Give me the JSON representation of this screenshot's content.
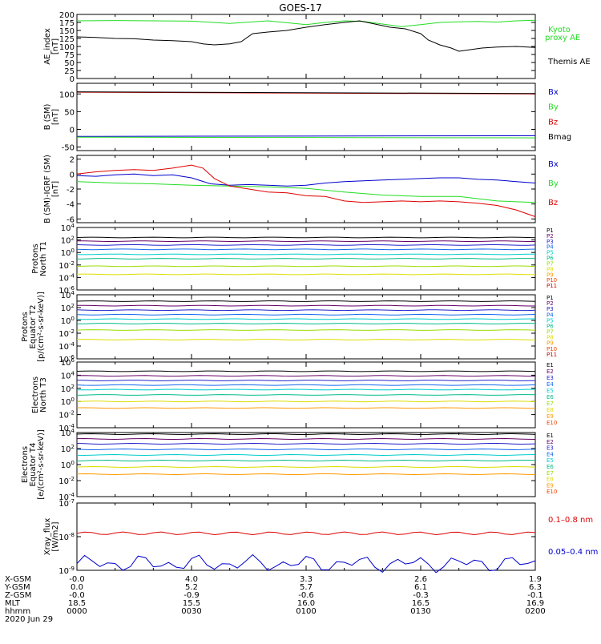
{
  "title": "GOES-17",
  "colors": {
    "black": "#000000",
    "green": "#22dd22",
    "blue": "#0000cc",
    "red": "#dd0000",
    "P1": "#000000",
    "P2": "#660066",
    "P3": "#2222cc",
    "P4": "#1166ee",
    "P5": "#00cccc",
    "P6": "#00bb88",
    "P7": "#99dd00",
    "P8": "#dddd00",
    "P9": "#ff9900",
    "P10": "#ee4400",
    "P11": "#cc0000"
  },
  "chart_data": [
    {
      "type": "line",
      "title": "GOES-17",
      "ylabel": "AE_index [nT]",
      "ylim": [
        0,
        200
      ],
      "yticks": [
        0,
        25,
        50,
        75,
        100,
        125,
        150,
        175,
        200
      ],
      "xlim": [
        0,
        120
      ],
      "series": [
        {
          "name": "Kyoto proxy AE",
          "color": "green",
          "x": [
            0,
            10,
            20,
            30,
            40,
            45,
            50,
            55,
            60,
            65,
            70,
            75,
            80,
            85,
            90,
            95,
            100,
            105,
            110,
            115,
            120
          ],
          "y": [
            180,
            181,
            180,
            179,
            172,
            176,
            180,
            174,
            168,
            175,
            180,
            178,
            170,
            162,
            168,
            175,
            177,
            178,
            176,
            180,
            182
          ]
        },
        {
          "name": "Themis AE",
          "color": "black",
          "x": [
            0,
            5,
            10,
            15,
            20,
            25,
            30,
            33,
            36,
            40,
            43,
            46,
            50,
            55,
            60,
            65,
            70,
            74,
            78,
            82,
            86,
            90,
            92,
            95,
            98,
            100,
            103,
            106,
            110,
            115,
            120
          ],
          "y": [
            130,
            128,
            125,
            124,
            120,
            118,
            115,
            108,
            105,
            108,
            115,
            140,
            145,
            150,
            160,
            168,
            175,
            180,
            170,
            160,
            155,
            140,
            120,
            105,
            95,
            85,
            90,
            95,
            98,
            100,
            97
          ]
        }
      ],
      "legend": [
        "Kyoto",
        "proxy AE",
        "Themis AE"
      ]
    },
    {
      "type": "line",
      "ylabel": "B (SM) [nT]",
      "ylim": [
        -60,
        130
      ],
      "yticks": [
        -50,
        0,
        50,
        100
      ],
      "series": [
        {
          "name": "Bx",
          "color": "blue",
          "x": [
            0,
            120
          ],
          "y": [
            -20,
            -18
          ]
        },
        {
          "name": "By",
          "color": "green",
          "x": [
            0,
            120
          ],
          "y": [
            -22,
            -24
          ]
        },
        {
          "name": "Bz",
          "color": "red",
          "x": [
            0,
            120
          ],
          "y": [
            105,
            100
          ]
        },
        {
          "name": "Bmag",
          "color": "black",
          "x": [
            0,
            120
          ],
          "y": [
            106,
            101
          ]
        }
      ],
      "legend": [
        "Bx",
        "By",
        "Bz",
        "Bmag"
      ]
    },
    {
      "type": "line",
      "ylabel": "B (SM)-IGRF (SM) [nT]",
      "ylim": [
        -6.5,
        2.5
      ],
      "yticks": [
        -6,
        -4,
        -2,
        0,
        2
      ],
      "series": [
        {
          "name": "Bx",
          "color": "blue",
          "x": [
            0,
            5,
            10,
            15,
            20,
            25,
            30,
            35,
            40,
            45,
            50,
            55,
            60,
            65,
            70,
            75,
            80,
            85,
            90,
            95,
            100,
            105,
            110,
            115,
            120
          ],
          "y": [
            -0.2,
            -0.3,
            -0.1,
            0.0,
            -0.2,
            -0.1,
            -0.5,
            -1.3,
            -1.5,
            -1.4,
            -1.5,
            -1.6,
            -1.5,
            -1.2,
            -1.0,
            -0.9,
            -0.8,
            -0.7,
            -0.6,
            -0.5,
            -0.5,
            -0.7,
            -0.8,
            -1.0,
            -1.2
          ]
        },
        {
          "name": "By",
          "color": "green",
          "x": [
            0,
            10,
            20,
            30,
            40,
            50,
            60,
            70,
            80,
            90,
            100,
            110,
            120
          ],
          "y": [
            -1.0,
            -1.2,
            -1.3,
            -1.5,
            -1.6,
            -1.7,
            -1.9,
            -2.4,
            -2.8,
            -3.0,
            -3.0,
            -3.6,
            -3.8
          ]
        },
        {
          "name": "Bz",
          "color": "red",
          "x": [
            0,
            5,
            10,
            15,
            20,
            25,
            30,
            33,
            36,
            40,
            45,
            50,
            55,
            60,
            65,
            70,
            75,
            80,
            85,
            90,
            95,
            100,
            105,
            110,
            115,
            120
          ],
          "y": [
            0.0,
            0.3,
            0.5,
            0.6,
            0.5,
            0.8,
            1.2,
            0.8,
            -0.6,
            -1.6,
            -2.0,
            -2.4,
            -2.5,
            -2.9,
            -3.0,
            -3.6,
            -3.8,
            -3.7,
            -3.6,
            -3.7,
            -3.6,
            -3.7,
            -3.9,
            -4.2,
            -4.8,
            -5.7
          ]
        }
      ],
      "legend": [
        "Bx",
        "By",
        "Bz"
      ]
    },
    {
      "type": "line",
      "ylabel": "Protons North T1",
      "ylog": true,
      "ylim": [
        -6,
        4
      ],
      "yticks": [
        "10^4",
        "10^2",
        "10^0",
        "10^-2",
        "10^-4",
        "10^-6"
      ],
      "series": [
        {
          "name": "P1",
          "color": "P1",
          "y": 2.4
        },
        {
          "name": "P2",
          "color": "P2",
          "y": 1.8
        },
        {
          "name": "P3",
          "color": "P3",
          "y": 1.2
        },
        {
          "name": "P4",
          "color": "P4",
          "y": 0.5
        },
        {
          "name": "P5",
          "color": "P5",
          "y": -0.3
        },
        {
          "name": "P6",
          "color": "P6",
          "y": -1.0
        },
        {
          "name": "P7",
          "color": "P7",
          "y": -2.2
        },
        {
          "name": "P8",
          "color": "P8",
          "y": -3.5
        }
      ],
      "legend": [
        "P1",
        "P2",
        "P3",
        "P4",
        "P5",
        "P6",
        "P7",
        "P8",
        "P9",
        "P10",
        "P11"
      ]
    },
    {
      "type": "line",
      "ylabel": "Protons Equator T2 [p/(cm²-s-sr-keV)]",
      "ylog": true,
      "ylim": [
        -6,
        4
      ],
      "yticks": [
        "10^4",
        "10^2",
        "10^0",
        "10^-2",
        "10^-4",
        "10^-6"
      ],
      "series": [
        {
          "name": "P1",
          "color": "P1",
          "y": 3.0
        },
        {
          "name": "P2",
          "color": "P2",
          "y": 2.3
        },
        {
          "name": "P3",
          "color": "P3",
          "y": 1.6
        },
        {
          "name": "P4",
          "color": "P4",
          "y": 0.9
        },
        {
          "name": "P5",
          "color": "P5",
          "y": 0.2
        },
        {
          "name": "P6",
          "color": "P6",
          "y": -0.5
        },
        {
          "name": "P7",
          "color": "P7",
          "y": -1.5
        },
        {
          "name": "P8",
          "color": "P8",
          "y": -3.0
        }
      ],
      "legend": [
        "P1",
        "P2",
        "P3",
        "P4",
        "P5",
        "P6",
        "P7",
        "P8",
        "P9",
        "P10",
        "P11"
      ]
    },
    {
      "type": "line",
      "ylabel": "Electrons North T3",
      "ylog": true,
      "ylim": [
        -4,
        6
      ],
      "yticks": [
        "10^6",
        "10^4",
        "10^2",
        "10^0",
        "10^-2",
        "10^-4"
      ],
      "series": [
        {
          "name": "E1",
          "color": "P1",
          "y": 4.6
        },
        {
          "name": "E2",
          "color": "P2",
          "y": 3.9
        },
        {
          "name": "E3",
          "color": "P3",
          "y": 3.2
        },
        {
          "name": "E4",
          "color": "P4",
          "y": 2.5
        },
        {
          "name": "E5",
          "color": "P5",
          "y": 1.8
        },
        {
          "name": "E6",
          "color": "P6",
          "y": 1.0
        },
        {
          "name": "E7",
          "color": "P8",
          "y": 0.0
        },
        {
          "name": "E8",
          "color": "P9",
          "y": -1.0
        }
      ],
      "legend": [
        "E1",
        "E2",
        "E3",
        "E4",
        "E5",
        "E6",
        "E7",
        "E8",
        "E9",
        "E10"
      ]
    },
    {
      "type": "line",
      "ylabel": "Electrons Equator T4 [e/(cm²-s-sr-keV)]",
      "ylog": true,
      "ylim": [
        -4,
        4
      ],
      "yticks": [
        "10^4",
        "10^2",
        "10^0",
        "10^-2",
        "10^-4"
      ],
      "series": [
        {
          "name": "E1",
          "color": "P1",
          "y": 3.8
        },
        {
          "name": "E2",
          "color": "P2",
          "y": 3.2
        },
        {
          "name": "E3",
          "color": "P3",
          "y": 2.6
        },
        {
          "name": "E4",
          "color": "P4",
          "y": 1.9
        },
        {
          "name": "E5",
          "color": "P5",
          "y": 1.2
        },
        {
          "name": "E6",
          "color": "P6",
          "y": 0.5
        },
        {
          "name": "E7",
          "color": "P8",
          "y": -0.3
        },
        {
          "name": "E8",
          "color": "P9",
          "y": -1.2
        }
      ],
      "legend": [
        "E1",
        "E2",
        "E3",
        "E4",
        "E5",
        "E6",
        "E7",
        "E8",
        "E9",
        "E10"
      ]
    },
    {
      "type": "line",
      "ylabel": "Xray_flux [W/m2]",
      "ylog": true,
      "ylim": [
        -9,
        -7
      ],
      "yticks": [
        "10^-7",
        "10^-8",
        "10^-9"
      ],
      "series": [
        {
          "name": "0.1-0.8 nm",
          "color": "red",
          "y": -7.9
        },
        {
          "name": "0.05-0.4 nm",
          "color": "blue",
          "y": -8.8
        }
      ],
      "legend": [
        "0.1–0.8 nm",
        "0.05–0.4 nm"
      ]
    }
  ],
  "x_axis": {
    "rows": [
      "X-GSM",
      "Y-GSM",
      "Z-GSM",
      "MLT",
      "hhmm"
    ],
    "columns": [
      [
        "-0.0",
        "0.0",
        "-0.0",
        "18.5",
        "0000"
      ],
      [
        "4.0",
        "5.2",
        "-0.9",
        "15.5",
        "0030"
      ],
      [
        "3.3",
        "5.7",
        "-0.6",
        "16.0",
        "0100"
      ],
      [
        "2.6",
        "6.1",
        "-0.3",
        "16.5",
        "0130"
      ],
      [
        "1.9",
        "6.3",
        "-0.1",
        "16.9",
        "0200"
      ]
    ],
    "date": "2020 Jun 29"
  }
}
